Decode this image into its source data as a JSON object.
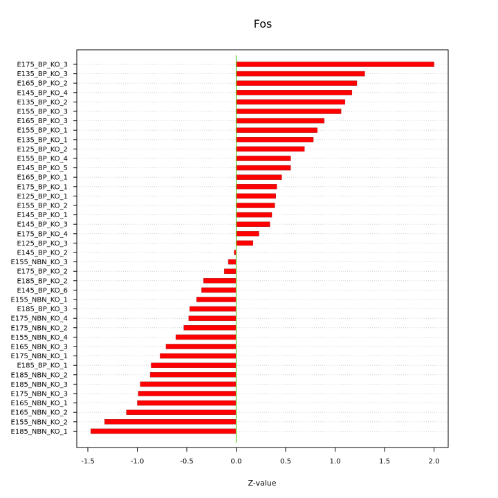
{
  "chart_data": {
    "type": "bar",
    "orientation": "horizontal",
    "title": "Fos",
    "xlabel": "Z-value",
    "ylabel": "",
    "xlim": [
      -1.6,
      2.15
    ],
    "xticks": [
      -1.5,
      -1.0,
      -0.5,
      0.0,
      0.5,
      1.0,
      1.5,
      2.0
    ],
    "xtick_labels": [
      "-1.5",
      "-1.0",
      "-0.5",
      "0.0",
      "0.5",
      "1.0",
      "1.5",
      "2.0"
    ],
    "grid": "horizontal dotted",
    "legend": "none",
    "categories": [
      "E175_BP_KO_3",
      "E135_BP_KO_3",
      "E165_BP_KO_2",
      "E145_BP_KO_4",
      "E135_BP_KO_2",
      "E155_BP_KO_3",
      "E165_BP_KO_3",
      "E155_BP_KO_1",
      "E135_BP_KO_1",
      "E125_BP_KO_2",
      "E155_BP_KO_4",
      "E145_BP_KO_5",
      "E165_BP_KO_1",
      "E175_BP_KO_1",
      "E125_BP_KO_1",
      "E155_BP_KO_2",
      "E145_BP_KO_1",
      "E145_BP_KO_3",
      "E175_BP_KO_4",
      "E125_BP_KO_3",
      "E145_BP_KO_2",
      "E155_NBN_KO_3",
      "E175_BP_KO_2",
      "E185_BP_KO_2",
      "E145_BP_KO_6",
      "E155_NBN_KO_1",
      "E185_BP_KO_3",
      "E175_NBN_KO_4",
      "E175_NBN_KO_2",
      "E155_NBN_KO_4",
      "E165_NBN_KO_3",
      "E175_NBN_KO_1",
      "E185_BP_KO_1",
      "E185_NBN_KO_2",
      "E185_NBN_KO_3",
      "E175_NBN_KO_3",
      "E165_NBN_KO_1",
      "E165_NBN_KO_2",
      "E155_NBN_KO_2",
      "E185_NBN_KO_1"
    ],
    "values": [
      2.0,
      1.3,
      1.22,
      1.17,
      1.1,
      1.06,
      0.89,
      0.82,
      0.78,
      0.69,
      0.55,
      0.55,
      0.46,
      0.41,
      0.4,
      0.39,
      0.36,
      0.34,
      0.23,
      0.17,
      -0.02,
      -0.08,
      -0.12,
      -0.33,
      -0.35,
      -0.4,
      -0.47,
      -0.48,
      -0.53,
      -0.61,
      -0.71,
      -0.77,
      -0.86,
      -0.87,
      -0.97,
      -0.99,
      -1.0,
      -1.11,
      -1.33,
      -1.47
    ],
    "colors": {
      "bar": "#ff0000",
      "bar_edge": "#a52a2a",
      "zero_line": "#66cc33",
      "grid": "#c8c8c8",
      "axis": "#000000"
    }
  }
}
